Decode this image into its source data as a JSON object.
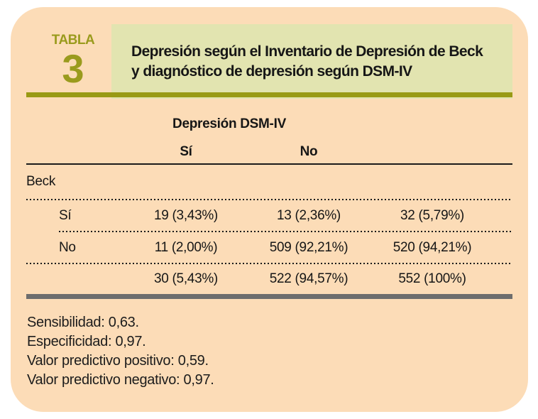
{
  "header": {
    "label_word": "TABLA",
    "label_number": "3",
    "title_line1": "Depresión según el Inventario de Depresión de Beck",
    "title_line2": "y diagnóstico de depresión según DSM-IV"
  },
  "table": {
    "group_header": "Depresión DSM-IV",
    "col_si": "Sí",
    "col_no": "No",
    "row_group": "Beck",
    "rows": [
      {
        "label": "Sí",
        "dsm_si": "19 (3,43%)",
        "dsm_no": "13 (2,36%)",
        "total": "32 (5,79%)"
      },
      {
        "label": "No",
        "dsm_si": "11 (2,00%)",
        "dsm_no": "509 (92,21%)",
        "total": "520 (94,21%)"
      }
    ],
    "totals": {
      "dsm_si": "30 (5,43%)",
      "dsm_no": "522 (94,57%)",
      "total": "552 (100%)"
    }
  },
  "notes": [
    "Sensibilidad: 0,63.",
    "Especificidad: 0,97.",
    "Valor predictivo positivo: 0,59.",
    "Valor predictivo negativo: 0,97."
  ],
  "colors": {
    "card_bg": "#fcdcb7",
    "title_bg": "#e2e4b0",
    "olive": "#9a9b1d",
    "bar_gray": "#6d6d6d",
    "text": "#161616"
  },
  "chart_data": {
    "type": "table",
    "title": "Depresión según el Inventario de Depresión de Beck y diagnóstico de depresión según DSM-IV",
    "group_header": "Depresión DSM-IV",
    "columns": [
      "Beck",
      "Sí",
      "No",
      ""
    ],
    "rows": [
      [
        "Sí",
        "19 (3,43%)",
        "13 (2,36%)",
        "32 (5,79%)"
      ],
      [
        "No",
        "11 (2,00%)",
        "509 (92,21%)",
        "520 (94,21%)"
      ],
      [
        "",
        "30 (5,43%)",
        "522 (94,57%)",
        "552 (100%)"
      ]
    ],
    "notes": [
      "Sensibilidad: 0,63.",
      "Especificidad: 0,97.",
      "Valor predictivo positivo: 0,59.",
      "Valor predictivo negativo: 0,97."
    ]
  }
}
